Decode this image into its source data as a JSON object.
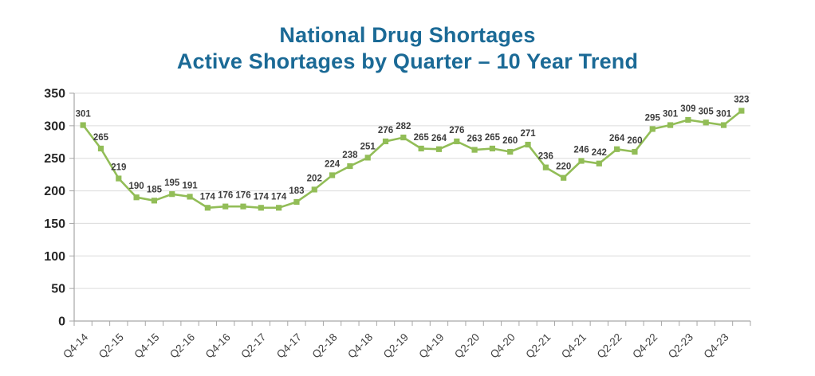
{
  "title": {
    "line1": "National Drug Shortages",
    "line2": "Active Shortages by Quarter – 10 Year Trend",
    "color": "#1b6a96"
  },
  "chart_data": {
    "type": "line",
    "title": "National Drug Shortages — Active Shortages by Quarter – 10 Year Trend",
    "x_tick_labels": [
      "Q4-14",
      "Q2-15",
      "Q4-15",
      "Q2-16",
      "Q4-16",
      "Q2-17",
      "Q4-17",
      "Q2-18",
      "Q4-18",
      "Q2-19",
      "Q4-19",
      "Q2-20",
      "Q4-20",
      "Q2-21",
      "Q4-21",
      "Q2-22",
      "Q4-22",
      "Q2-23",
      "Q4-23"
    ],
    "x_tick_label_every": 2,
    "n_points": 38,
    "values": [
      301,
      265,
      219,
      190,
      185,
      195,
      191,
      174,
      176,
      176,
      174,
      174,
      183,
      202,
      224,
      238,
      251,
      276,
      282,
      265,
      264,
      276,
      263,
      265,
      260,
      271,
      236,
      220,
      246,
      242,
      264,
      260,
      295,
      301,
      309,
      305,
      301,
      323
    ],
    "ylim": [
      0,
      350
    ],
    "y_ticks": [
      0,
      50,
      100,
      150,
      200,
      250,
      300,
      350
    ],
    "grid": "horizontal",
    "legend": "none",
    "data_labels_shown": true,
    "marker": "square",
    "colors": {
      "line": "#92bd57",
      "marker": "#92bd57",
      "gridline": "#dcdcdc",
      "axis": "#a6a6a6",
      "data_label": "#3d3d3d",
      "x_tick_label": "#404040",
      "y_tick_label": "#262626"
    }
  }
}
